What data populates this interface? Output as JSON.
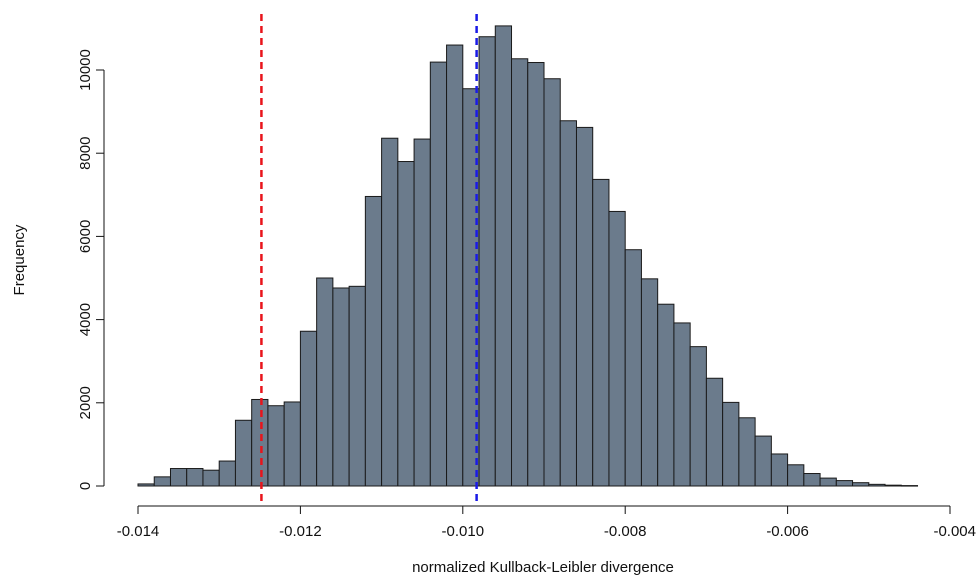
{
  "chart_data": {
    "type": "bar",
    "title": "",
    "xlabel": "normalized Kullback-Leibler divergence",
    "ylabel": "Frequency",
    "xlim": [
      -0.014,
      -0.004
    ],
    "ylim": [
      0,
      11000
    ],
    "x_ticks": [
      -0.014,
      -0.012,
      -0.01,
      -0.008,
      -0.006,
      -0.004
    ],
    "x_tick_labels": [
      "-0.014",
      "-0.012",
      "-0.010",
      "-0.008",
      "-0.006",
      "-0.004"
    ],
    "y_ticks": [
      0,
      2000,
      4000,
      6000,
      8000,
      10000
    ],
    "y_tick_labels": [
      "0",
      "2000",
      "4000",
      "6000",
      "8000",
      "10000"
    ],
    "grid": false,
    "bar_color": "#6b7b8c",
    "bar_edge_color": "#1a1a1a",
    "bin_width": 0.0002,
    "bins_start": [
      -0.014,
      -0.0138,
      -0.0136,
      -0.0134,
      -0.0132,
      -0.013,
      -0.0128,
      -0.0126,
      -0.0124,
      -0.0122,
      -0.012,
      -0.0118,
      -0.0116,
      -0.0114,
      -0.0112,
      -0.011,
      -0.0108,
      -0.0106,
      -0.0104,
      -0.0102,
      -0.01,
      -0.0098,
      -0.0096,
      -0.0094,
      -0.0092,
      -0.009,
      -0.0088,
      -0.0086,
      -0.0084,
      -0.0082,
      -0.008,
      -0.0078,
      -0.0076,
      -0.0074,
      -0.0072,
      -0.007,
      -0.0068,
      -0.0066,
      -0.0064,
      -0.0062,
      -0.006,
      -0.0058,
      -0.0056,
      -0.0054,
      -0.0052,
      -0.005,
      -0.0048,
      -0.0046
    ],
    "counts": [
      50,
      220,
      420,
      420,
      380,
      600,
      1580,
      2080,
      1930,
      2020,
      3720,
      5000,
      4760,
      4800,
      6960,
      8360,
      7800,
      8340,
      10190,
      10600,
      9550,
      10800,
      11060,
      10270,
      10180,
      9790,
      8780,
      8620,
      7370,
      6600,
      5680,
      4980,
      4370,
      3920,
      3350,
      2590,
      2010,
      1640,
      1200,
      770,
      510,
      300,
      190,
      130,
      80,
      40,
      20,
      10
    ],
    "reference_lines": [
      {
        "x": -0.01248,
        "color": "#e8141b",
        "style": "dashed"
      },
      {
        "x": -0.00983,
        "color": "#1a1ae6",
        "style": "dashed"
      }
    ]
  }
}
